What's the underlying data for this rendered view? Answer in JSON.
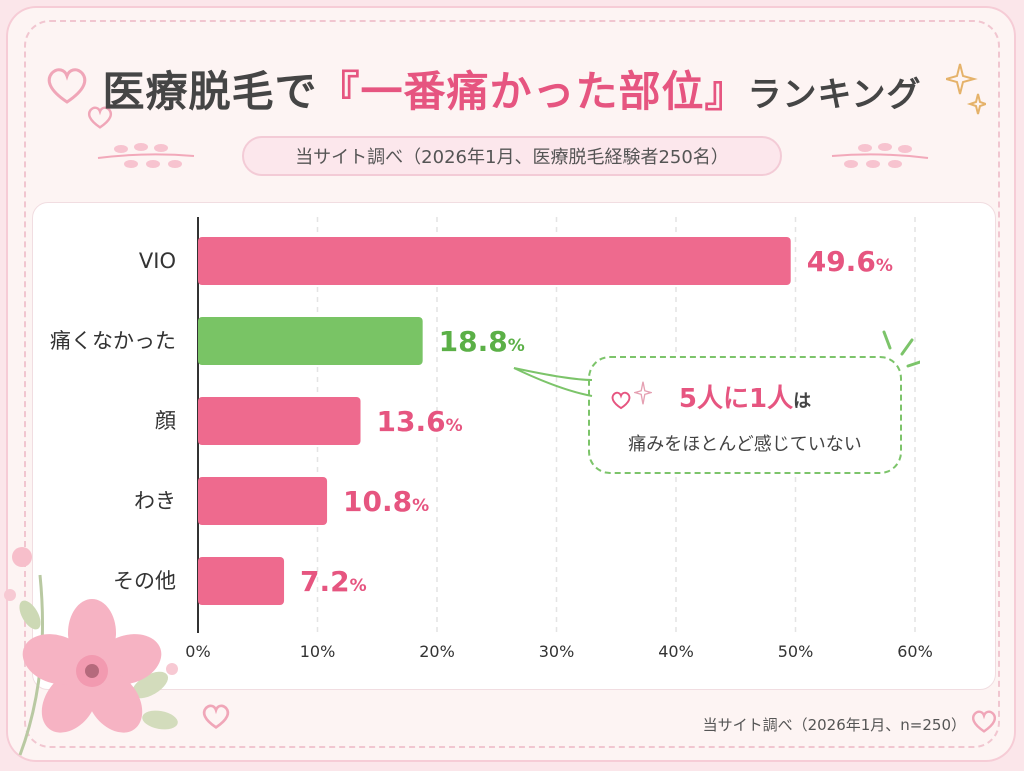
{
  "title": {
    "part1": "医療脱毛で",
    "highlight": "『一番痛かった部位』",
    "part2": "ランキング"
  },
  "subtitle": "当サイト調べ（2026年1月、医療脱毛経験者250名）",
  "footer": "当サイト調べ（2026年1月、n=250）",
  "callout": {
    "num1": "5",
    "word1": "人に",
    "num2": "1",
    "word2": "人",
    "particle": "は",
    "line2": "痛みをほとんど感じていない"
  },
  "colors": {
    "pink": "#ee6a8e",
    "green": "#79c465",
    "pink_text": "#e65580",
    "green_text": "#5bb047"
  },
  "chart_data": {
    "type": "bar",
    "orientation": "horizontal",
    "categories": [
      "VIO",
      "痛くなかった",
      "顔",
      "わき",
      "その他"
    ],
    "values": [
      49.6,
      18.8,
      13.6,
      10.8,
      7.2
    ],
    "value_labels": [
      "49.6%",
      "18.8%",
      "13.6%",
      "10.8%",
      "7.2%"
    ],
    "bar_colors": [
      "#ee6a8e",
      "#79c465",
      "#ee6a8e",
      "#ee6a8e",
      "#ee6a8e"
    ],
    "label_colors": [
      "#e65580",
      "#5bb047",
      "#e65580",
      "#e65580",
      "#e65580"
    ],
    "xlim": [
      0,
      60
    ],
    "x_ticks": [
      0,
      10,
      20,
      30,
      40,
      50,
      60
    ],
    "x_tick_labels": [
      "0%",
      "10%",
      "20%",
      "30%",
      "40%",
      "50%",
      "60%"
    ],
    "grid": true,
    "xlabel": "",
    "ylabel": ""
  }
}
